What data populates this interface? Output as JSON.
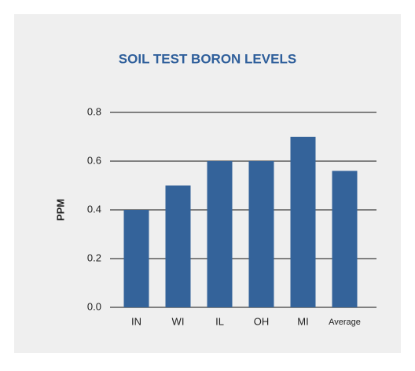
{
  "chart_data": {
    "type": "bar",
    "title": "SOIL TEST BORON LEVELS",
    "y_label": "PPM",
    "categories": [
      "IN",
      "WI",
      "IL",
      "OH",
      "MI",
      "Average"
    ],
    "values": [
      0.4,
      0.5,
      0.6,
      0.6,
      0.7,
      0.56
    ],
    "color": "#34639a",
    "ylim": [
      0,
      0.8
    ],
    "yticks": [
      {
        "value": 0,
        "label": "0.0"
      },
      0.2,
      0.4,
      0.6,
      0.8
    ],
    "grid": true
  }
}
